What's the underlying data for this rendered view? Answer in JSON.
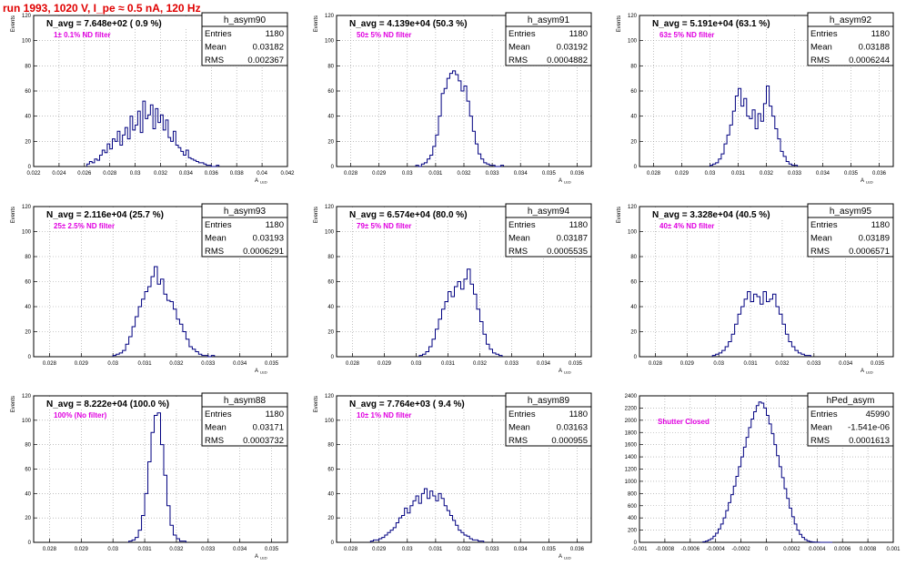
{
  "page": {
    "title": "run 1993,  1020 V, I_pe ≈ 0.5 nA, 120 Hz"
  },
  "colors": {
    "title": "#e00000",
    "histogram": "#000080",
    "annotation": "#e000e0",
    "text": "#000000",
    "grid": "#999999"
  },
  "chart_data": [
    {
      "type": "histogram",
      "name": "h_asym90",
      "ylabel": "Events",
      "xlabel": "A_LED",
      "xlim": [
        0.022,
        0.042
      ],
      "ylim": [
        0,
        120
      ],
      "xticks": [
        0.022,
        0.024,
        0.026,
        0.028,
        0.03,
        0.032,
        0.034,
        0.036,
        0.038,
        0.04,
        0.042
      ],
      "xtick_labels": [
        "0.022",
        "0.024",
        "0.026",
        "0.028",
        "0.03",
        "0.032",
        "0.034",
        "0.036",
        "0.038",
        "0.04",
        "0.042"
      ],
      "yticks": [
        0,
        20,
        40,
        60,
        80,
        100,
        120
      ],
      "grid": true,
      "n_avg": "N_avg = 7.648e+02 ( 0.9 %)",
      "annotation": "1± 0.1% ND filter",
      "stats": {
        "title": "h_asym90",
        "rows": [
          [
            "Entries",
            "1180"
          ],
          [
            "Mean",
            "0.03182"
          ],
          [
            "RMS",
            "0.002367"
          ]
        ]
      },
      "bins": {
        "start": 0.0262,
        "width": 0.0002,
        "counts": [
          2,
          4,
          3,
          6,
          5,
          9,
          13,
          11,
          18,
          14,
          22,
          20,
          28,
          17,
          25,
          31,
          22,
          40,
          29,
          33,
          44,
          27,
          52,
          38,
          41,
          49,
          30,
          46,
          35,
          41,
          29,
          37,
          23,
          20,
          28,
          17,
          15,
          12,
          9,
          13,
          7,
          6,
          5,
          4,
          3,
          3,
          2,
          1,
          1,
          0,
          0,
          1
        ]
      }
    },
    {
      "type": "histogram",
      "name": "h_asym91",
      "ylabel": "Events",
      "xlabel": "A_LED",
      "xlim": [
        0.0275,
        0.0365
      ],
      "ylim": [
        0,
        120
      ],
      "xticks": [
        0.028,
        0.029,
        0.03,
        0.031,
        0.032,
        0.033,
        0.034,
        0.035,
        0.036
      ],
      "xtick_labels": [
        "0.028",
        "0.029",
        "0.03",
        "0.031",
        "0.032",
        "0.033",
        "0.034",
        "0.035",
        "0.036"
      ],
      "yticks": [
        0,
        20,
        40,
        60,
        80,
        100,
        120
      ],
      "grid": true,
      "n_avg": "N_avg = 4.139e+04 (50.3 %)",
      "annotation": "50± 5% ND filter",
      "stats": {
        "title": "h_asym91",
        "rows": [
          [
            "Entries",
            "1180"
          ],
          [
            "Mean",
            "0.03192"
          ],
          [
            "RMS",
            "0.0004882"
          ]
        ]
      },
      "bins": {
        "start": 0.0303,
        "width": 0.0001,
        "counts": [
          1,
          0,
          2,
          3,
          6,
          9,
          16,
          25,
          40,
          58,
          62,
          70,
          74,
          76,
          73,
          68,
          60,
          64,
          52,
          40,
          28,
          18,
          10,
          6,
          3,
          2,
          1,
          1,
          0,
          0,
          1
        ]
      }
    },
    {
      "type": "histogram",
      "name": "h_asym92",
      "ylabel": "Events",
      "xlabel": "A_LED",
      "xlim": [
        0.0275,
        0.0365
      ],
      "ylim": [
        0,
        120
      ],
      "xticks": [
        0.028,
        0.029,
        0.03,
        0.031,
        0.032,
        0.033,
        0.034,
        0.035,
        0.036
      ],
      "xtick_labels": [
        "0.028",
        "0.029",
        "0.03",
        "0.031",
        "0.032",
        "0.033",
        "0.034",
        "0.035",
        "0.036"
      ],
      "yticks": [
        0,
        20,
        40,
        60,
        80,
        100,
        120
      ],
      "grid": true,
      "n_avg": "N_avg = 5.191e+04 (63.1 %)",
      "annotation": "63± 5% ND filter",
      "stats": {
        "title": "h_asym92",
        "rows": [
          [
            "Entries",
            "1180"
          ],
          [
            "Mean",
            "0.03188"
          ],
          [
            "RMS",
            "0.0006244"
          ]
        ]
      },
      "bins": {
        "start": 0.03,
        "width": 0.0001,
        "counts": [
          1,
          2,
          3,
          6,
          10,
          18,
          25,
          33,
          44,
          56,
          62,
          48,
          54,
          40,
          38,
          45,
          30,
          42,
          36,
          50,
          64,
          48,
          40,
          30,
          22,
          12,
          8,
          4,
          2,
          1,
          1
        ]
      }
    },
    {
      "type": "histogram",
      "name": "h_asym93",
      "ylabel": "Events",
      "xlabel": "A_LED",
      "xlim": [
        0.0275,
        0.0355
      ],
      "ylim": [
        0,
        120
      ],
      "xticks": [
        0.028,
        0.029,
        0.03,
        0.031,
        0.032,
        0.033,
        0.034,
        0.035
      ],
      "xtick_labels": [
        "0.028",
        "0.029",
        "0.03",
        "0.031",
        "0.032",
        "0.033",
        "0.034",
        "0.035"
      ],
      "yticks": [
        0,
        20,
        40,
        60,
        80,
        100,
        120
      ],
      "grid": true,
      "n_avg": "N_avg = 2.116e+04 (25.7 %)",
      "annotation": "25± 2.5% ND filter",
      "stats": {
        "title": "h_asym93",
        "rows": [
          [
            "Entries",
            "1180"
          ],
          [
            "Mean",
            "0.03193"
          ],
          [
            "RMS",
            "0.0006291"
          ]
        ]
      },
      "bins": {
        "start": 0.03,
        "width": 0.0001,
        "counts": [
          1,
          2,
          3,
          5,
          10,
          16,
          24,
          32,
          40,
          46,
          52,
          56,
          64,
          72,
          58,
          62,
          50,
          45,
          44,
          38,
          30,
          26,
          20,
          14,
          8,
          6,
          4,
          2,
          1,
          1,
          0,
          1
        ]
      }
    },
    {
      "type": "histogram",
      "name": "h_asym94",
      "ylabel": "Events",
      "xlabel": "A_LED",
      "xlim": [
        0.0275,
        0.0355
      ],
      "ylim": [
        0,
        120
      ],
      "xticks": [
        0.028,
        0.029,
        0.03,
        0.031,
        0.032,
        0.033,
        0.034,
        0.035
      ],
      "xtick_labels": [
        "0.028",
        "0.029",
        "0.03",
        "0.031",
        "0.032",
        "0.033",
        "0.034",
        "0.035"
      ],
      "yticks": [
        0,
        20,
        40,
        60,
        80,
        100,
        120
      ],
      "grid": true,
      "n_avg": "N_avg = 6.574e+04 (80.0 %)",
      "annotation": "79± 5% ND filter",
      "stats": {
        "title": "h_asym94",
        "rows": [
          [
            "Entries",
            "1180"
          ],
          [
            "Mean",
            "0.03187"
          ],
          [
            "RMS",
            "0.0005535"
          ]
        ]
      },
      "bins": {
        "start": 0.0301,
        "width": 0.0001,
        "counts": [
          1,
          2,
          4,
          8,
          14,
          22,
          30,
          38,
          44,
          52,
          48,
          56,
          60,
          54,
          62,
          70,
          58,
          50,
          38,
          28,
          18,
          10,
          6,
          3,
          2,
          1
        ]
      }
    },
    {
      "type": "histogram",
      "name": "h_asym95",
      "ylabel": "Events",
      "xlabel": "A_LED",
      "xlim": [
        0.0275,
        0.0355
      ],
      "ylim": [
        0,
        120
      ],
      "xticks": [
        0.028,
        0.029,
        0.03,
        0.031,
        0.032,
        0.033,
        0.034,
        0.035
      ],
      "xtick_labels": [
        "0.028",
        "0.029",
        "0.03",
        "0.031",
        "0.032",
        "0.033",
        "0.034",
        "0.035"
      ],
      "yticks": [
        0,
        20,
        40,
        60,
        80,
        100,
        120
      ],
      "grid": true,
      "n_avg": "N_avg = 3.328e+04 (40.5 %)",
      "annotation": "40± 4% ND filter",
      "stats": {
        "title": "h_asym95",
        "rows": [
          [
            "Entries",
            "1180"
          ],
          [
            "Mean",
            "0.03189"
          ],
          [
            "RMS",
            "0.0006571"
          ]
        ]
      },
      "bins": {
        "start": 0.0298,
        "width": 0.0001,
        "counts": [
          1,
          2,
          3,
          5,
          8,
          12,
          18,
          26,
          34,
          40,
          46,
          52,
          44,
          50,
          48,
          42,
          52,
          44,
          46,
          50,
          40,
          34,
          26,
          18,
          12,
          8,
          5,
          3,
          2,
          1,
          1
        ]
      }
    },
    {
      "type": "histogram",
      "name": "h_asym88",
      "ylabel": "Events",
      "xlabel": "A_LED",
      "xlim": [
        0.0275,
        0.0355
      ],
      "ylim": [
        0,
        120
      ],
      "xticks": [
        0.028,
        0.029,
        0.03,
        0.031,
        0.032,
        0.033,
        0.034,
        0.035
      ],
      "xtick_labels": [
        "0.028",
        "0.029",
        "0.03",
        "0.031",
        "0.032",
        "0.033",
        "0.034",
        "0.035"
      ],
      "yticks": [
        0,
        20,
        40,
        60,
        80,
        100,
        120
      ],
      "grid": true,
      "n_avg": "N_avg = 8.222e+04 (100.0 %)",
      "annotation": "100% (No filter)",
      "stats": {
        "title": "h_asym88",
        "rows": [
          [
            "Entries",
            "1180"
          ],
          [
            "Mean",
            "0.03171"
          ],
          [
            "RMS",
            "0.0003732"
          ]
        ]
      },
      "bins": {
        "start": 0.0305,
        "width": 0.0001,
        "counts": [
          1,
          2,
          4,
          10,
          22,
          40,
          66,
          90,
          104,
          106,
          80,
          55,
          30,
          14,
          6,
          3,
          1,
          1
        ]
      }
    },
    {
      "type": "histogram",
      "name": "h_asym89",
      "ylabel": "Events",
      "xlabel": "A_LED",
      "xlim": [
        0.0275,
        0.0365
      ],
      "ylim": [
        0,
        120
      ],
      "xticks": [
        0.028,
        0.029,
        0.03,
        0.031,
        0.032,
        0.033,
        0.034,
        0.035,
        0.036
      ],
      "xtick_labels": [
        "0.028",
        "0.029",
        "0.03",
        "0.031",
        "0.032",
        "0.033",
        "0.034",
        "0.035",
        "0.036"
      ],
      "yticks": [
        0,
        20,
        40,
        60,
        80,
        100,
        120
      ],
      "grid": true,
      "n_avg": "N_avg = 7.764e+03 ( 9.4 %)",
      "annotation": "10± 1% ND filter",
      "stats": {
        "title": "h_asym89",
        "rows": [
          [
            "Entries",
            "1180"
          ],
          [
            "Mean",
            "0.03163"
          ],
          [
            "RMS",
            "0.000955"
          ]
        ]
      },
      "bins": {
        "start": 0.0287,
        "width": 0.0001,
        "counts": [
          1,
          2,
          2,
          3,
          4,
          6,
          8,
          10,
          12,
          16,
          20,
          22,
          28,
          24,
          30,
          34,
          38,
          32,
          40,
          44,
          36,
          42,
          38,
          34,
          40,
          36,
          30,
          26,
          22,
          18,
          14,
          10,
          8,
          6,
          5,
          3,
          2,
          2,
          1,
          1
        ]
      }
    },
    {
      "type": "histogram",
      "name": "hPed_asym",
      "ylabel": "",
      "xlabel": "",
      "xlim": [
        -0.001,
        0.001
      ],
      "ylim": [
        0,
        2400
      ],
      "xticks": [
        -0.001,
        -0.0008,
        -0.0006,
        -0.0004,
        -0.0002,
        0,
        0.0002,
        0.0004,
        0.0006,
        0.0008,
        0.001
      ],
      "xtick_labels": [
        "-0.001",
        "-0.0008",
        "-0.0006",
        "-0.0004",
        "-0.0002",
        "0",
        "0.0002",
        "0.0004",
        "0.0006",
        "0.0008",
        "0.001"
      ],
      "yticks": [
        0,
        200,
        400,
        600,
        800,
        1000,
        1200,
        1400,
        1600,
        1800,
        2000,
        2200,
        2400
      ],
      "grid": true,
      "n_avg": "",
      "annotation": "Shutter Closed",
      "stats": {
        "title": "hPed_asym",
        "rows": [
          [
            "Entries",
            "45990"
          ],
          [
            "Mean",
            "-1.541e-06"
          ],
          [
            "RMS",
            "0.0001613"
          ]
        ]
      },
      "bins": {
        "start": -0.0005,
        "width": 2e-05,
        "counts": [
          10,
          20,
          40,
          60,
          100,
          150,
          220,
          300,
          400,
          520,
          650,
          780,
          920,
          1080,
          1240,
          1400,
          1560,
          1720,
          1880,
          2020,
          2140,
          2240,
          2300,
          2280,
          2200,
          2080,
          1940,
          1780,
          1600,
          1420,
          1240,
          1060,
          880,
          720,
          560,
          420,
          300,
          200,
          130,
          80,
          45,
          25,
          12,
          6,
          3,
          1,
          0,
          0,
          0,
          0,
          0
        ]
      }
    }
  ]
}
